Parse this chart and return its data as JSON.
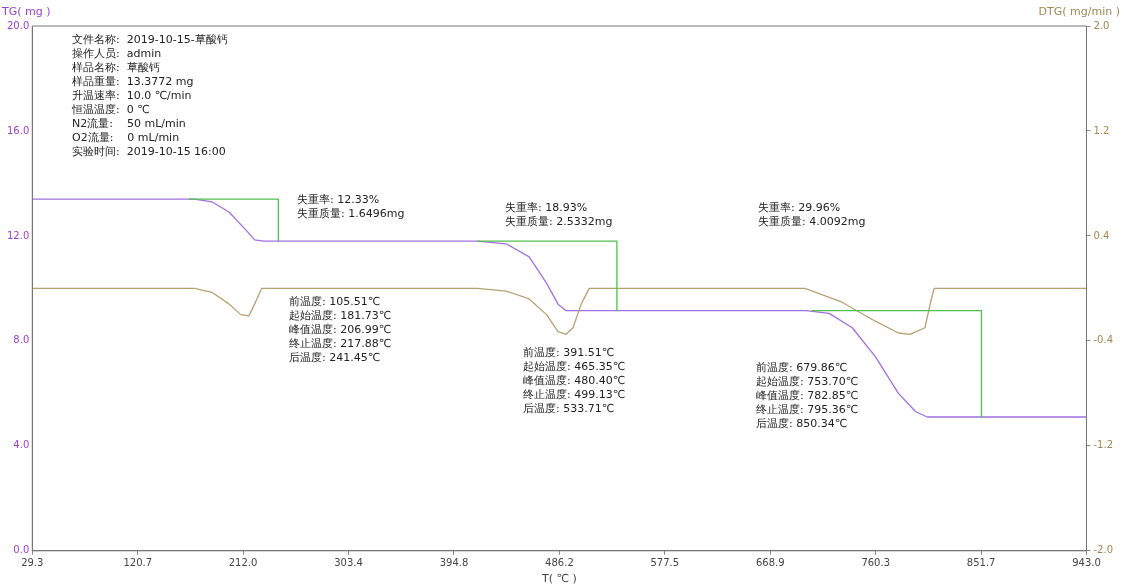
{
  "chart_data": {
    "type": "line",
    "xlabel": "T( ℃ )",
    "ylabel": "TG( mg )",
    "y2label": "DTG( mg/min )",
    "xlim": [
      29.3,
      943.0
    ],
    "xticks": [
      {
        "value": 29.3,
        "label": "29.3"
      },
      {
        "value": 120.7,
        "label": "120.7"
      },
      {
        "value": 212.0,
        "label": "212.0"
      },
      {
        "value": 303.4,
        "label": "303.4"
      },
      {
        "value": 394.8,
        "label": "394.8"
      },
      {
        "value": 486.2,
        "label": "486.2"
      },
      {
        "value": 577.5,
        "label": "577.5"
      },
      {
        "value": 668.9,
        "label": "668.9"
      },
      {
        "value": 760.3,
        "label": "760.3"
      },
      {
        "value": 851.7,
        "label": "851.7"
      },
      {
        "value": 943.0,
        "label": "943.0"
      }
    ],
    "ylim": [
      0,
      20
    ],
    "yticks": [
      {
        "value": 0,
        "label": "0.0"
      },
      {
        "value": 4,
        "label": "4.0"
      },
      {
        "value": 8,
        "label": "8.0"
      },
      {
        "value": 12,
        "label": "12.0"
      },
      {
        "value": 16,
        "label": "16.0"
      },
      {
        "value": 20,
        "label": "20.0"
      }
    ],
    "y2lim": [
      -2,
      2
    ],
    "y2ticks": [
      {
        "value": -2,
        "label": "-2.0"
      },
      {
        "value": -1.2,
        "label": "-1.2"
      },
      {
        "value": -0.4,
        "label": "-0.4"
      },
      {
        "value": 0.4,
        "label": "0.4"
      },
      {
        "value": 1.2,
        "label": "1.2"
      },
      {
        "value": 2,
        "label": "2.0"
      }
    ],
    "grid": false,
    "legend": false,
    "marker": "none",
    "line_style": "solid",
    "series": [
      {
        "color": "#a070e0",
        "x": [
          29.3,
          170,
          185,
          200,
          215,
          222,
          230,
          415,
          440,
          460,
          475,
          485,
          492,
          700,
          720,
          740,
          760,
          780,
          795,
          805,
          943
        ],
        "values": [
          13.4,
          13.4,
          13.3,
          12.9,
          12.2,
          11.85,
          11.8,
          11.8,
          11.7,
          11.2,
          10.2,
          9.4,
          9.15,
          9.15,
          9.05,
          8.5,
          7.4,
          6.0,
          5.3,
          5.1,
          5.1
        ]
      },
      {
        "color": "#b8a070",
        "axis": "y2",
        "x": [
          29.3,
          170,
          185,
          200,
          210,
          217,
          222,
          228,
          415,
          440,
          460,
          475,
          485,
          492,
          498,
          505,
          512,
          699,
          730,
          760,
          780,
          790,
          803,
          808,
          811,
          943
        ],
        "values": [
          0,
          0,
          -0.03,
          -0.12,
          -0.2,
          -0.21,
          -0.12,
          0,
          0,
          -0.02,
          -0.08,
          -0.2,
          -0.33,
          -0.35,
          -0.3,
          -0.12,
          0,
          0,
          -0.1,
          -0.25,
          -0.34,
          -0.35,
          -0.3,
          -0.1,
          0,
          0
        ]
      },
      {
        "color": "#50c050",
        "x": [
          165,
          242.6,
          242.6
        ],
        "values": [
          13.4,
          13.4,
          11.8
        ]
      },
      {
        "color": "#50c050",
        "x": [
          415,
          536,
          536
        ],
        "values": [
          11.8,
          11.8,
          9.15
        ]
      },
      {
        "color": "#50c050",
        "x": [
          705,
          852,
          852
        ],
        "values": [
          9.15,
          9.15,
          5.1
        ]
      }
    ],
    "annotations": [
      "文件名称:  2019-10-15-草酸钙",
      "操作人员:  admin",
      "样品名称:  草酸钙",
      "样品重量:  13.3772 mg",
      "升温速率:  10.0 ℃/min",
      "恒温温度:  0 ℃",
      "N2流量:    50 mL/min",
      "O2流量:    0 mL/min",
      "实验时间:  2019-10-15 16:00",
      "失重率: 12.33%",
      "失重质量: 1.6496mg",
      "失重率: 18.93%",
      "失重质量: 2.5332mg",
      "失重率: 29.96%",
      "失重质量: 4.0092mg",
      "前温度: 105.51℃",
      "起始温度: 181.73℃",
      "峰值温度: 206.99℃",
      "终止温度: 217.88℃",
      "后温度: 241.45℃",
      "前温度: 391.51℃",
      "起始温度: 465.35℃",
      "峰值温度: 480.40℃",
      "终止温度: 499.13℃",
      "后温度: 533.71℃",
      "前温度: 679.86℃",
      "起始温度: 753.70℃",
      "峰值温度: 782.85℃",
      "终止温度: 795.36℃",
      "后温度: 850.34℃"
    ]
  }
}
